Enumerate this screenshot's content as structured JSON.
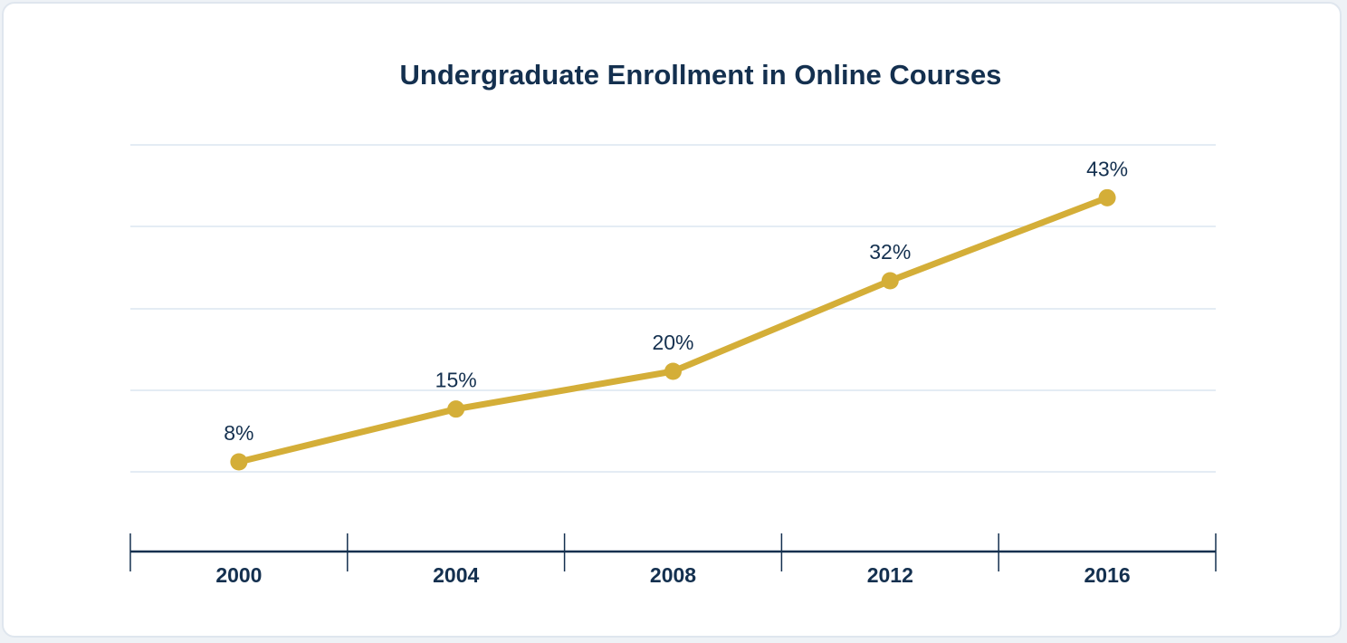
{
  "chart_data": {
    "type": "line",
    "title": "Undergraduate Enrollment in Online Courses",
    "xlabel": "",
    "ylabel": "",
    "categories": [
      "2000",
      "2004",
      "2008",
      "2012",
      "2016"
    ],
    "series": [
      {
        "values": [
          8,
          15,
          20,
          32,
          43
        ]
      }
    ],
    "data_labels": [
      "8%",
      "15%",
      "20%",
      "32%",
      "43%"
    ],
    "ylim": [
      -4,
      50
    ],
    "grid": true,
    "legend": "none",
    "colors": {
      "line": "#d4ae38",
      "text": "#14304f",
      "grid": "#dbe6f0",
      "axis": "#14304f"
    }
  }
}
